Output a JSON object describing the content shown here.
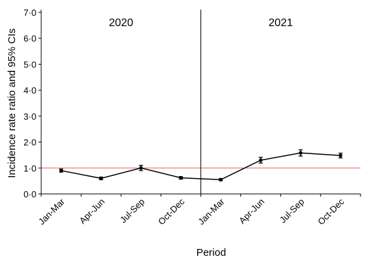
{
  "chart_data": {
    "type": "line",
    "xlabel": "Period",
    "ylabel": "Incidence rate ratio and 95% CIs",
    "ylim": [
      0,
      7
    ],
    "yticks": [
      "0·0",
      "1·0",
      "2·0",
      "3·0",
      "4·0",
      "5·0",
      "6·0",
      "7·0"
    ],
    "categories": [
      "Jan-Mar",
      "Apr-Jun",
      "Jul-Sep",
      "Oct-Dec",
      "Jan-Mar",
      "Apr-Jun",
      "Jul-Sep",
      "Oct-Dec"
    ],
    "periods": [
      {
        "label": "2020",
        "start": 0,
        "end": 3
      },
      {
        "label": "2021",
        "start": 4,
        "end": 7
      }
    ],
    "series": [
      {
        "values": [
          0.9,
          0.6,
          1.0,
          0.62,
          0.55,
          1.3,
          1.58,
          1.48
        ],
        "ci_low": [
          0.84,
          0.55,
          0.9,
          0.57,
          0.51,
          1.19,
          1.46,
          1.39
        ],
        "ci_high": [
          0.96,
          0.65,
          1.1,
          0.67,
          0.59,
          1.41,
          1.7,
          1.57
        ],
        "color": "#000000"
      }
    ],
    "reference_line": {
      "value": 1.0,
      "color": "#e06666"
    },
    "divider_after_index": 3,
    "grid": false
  }
}
